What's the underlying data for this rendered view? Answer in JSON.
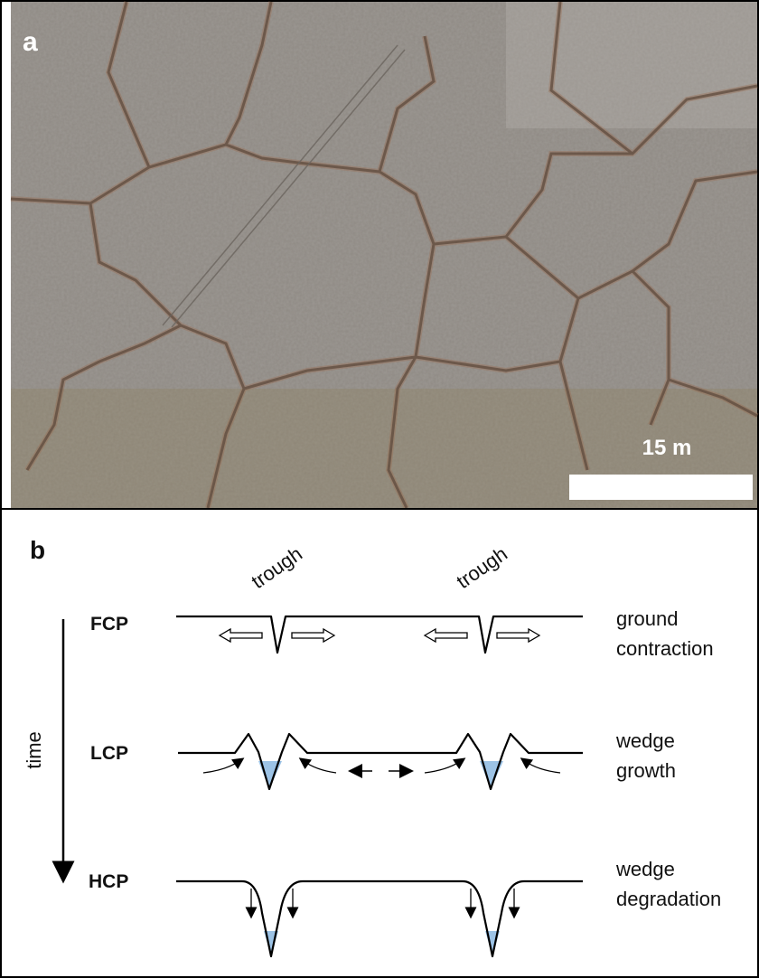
{
  "panel_a": {
    "label": "a",
    "scale_bar": "15 m"
  },
  "panel_b": {
    "label": "b",
    "trough_labels": [
      "trough",
      "trough"
    ],
    "time_label": "time",
    "stages": [
      {
        "label": "FCP",
        "description": [
          "ground",
          "contraction"
        ]
      },
      {
        "label": "LCP",
        "description": [
          "wedge",
          "growth"
        ]
      },
      {
        "label": "HCP",
        "description": [
          "wedge",
          "degradation"
        ]
      }
    ]
  }
}
